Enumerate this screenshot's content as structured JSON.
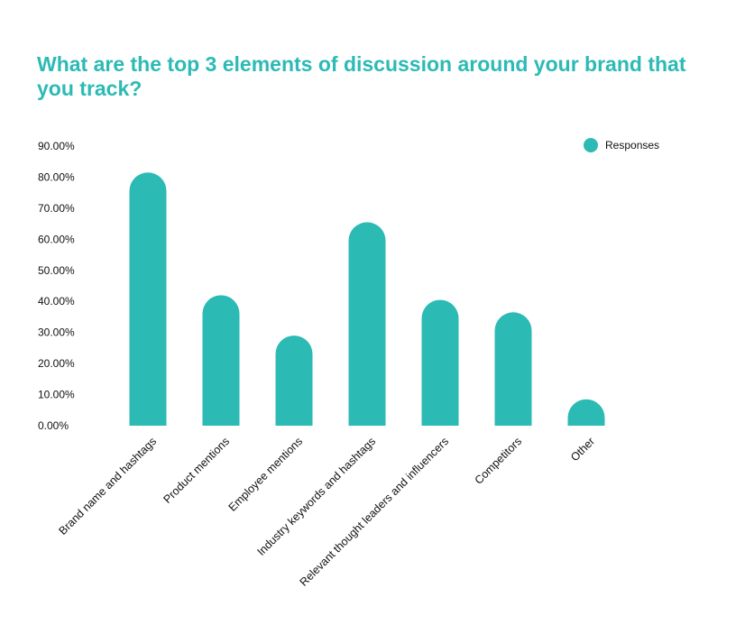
{
  "chart_data": {
    "type": "bar",
    "title": "What are the top 3 elements of discussion around your brand that you track?",
    "categories": [
      "Brand name and hashtags",
      "Product mentions",
      "Employee mentions",
      "Industry keywords and hashtags",
      "Relevant thought leaders and influencers",
      "Competitors",
      "Other"
    ],
    "series": [
      {
        "name": "Responses",
        "values": [
          81.5,
          42,
          29,
          65.5,
          40.5,
          36.5,
          8.5
        ]
      }
    ],
    "yticks": [
      "0.00%",
      "10.00%",
      "20.00%",
      "30.00%",
      "40.00%",
      "50.00%",
      "60.00%",
      "70.00%",
      "80.00%",
      "90.00%"
    ],
    "ylim": [
      0,
      90
    ],
    "grid": false,
    "legend_position": "top-right",
    "colors": {
      "bar": "#2cbab5",
      "title": "#2cbab5",
      "text": "#111111"
    }
  }
}
